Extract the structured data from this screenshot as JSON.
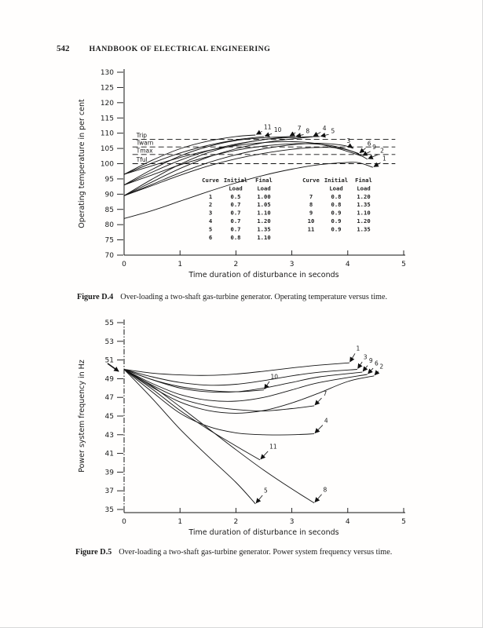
{
  "page": {
    "number": "542",
    "header_title": "HANDBOOK OF ELECTRICAL ENGINEERING"
  },
  "chart_data": [
    {
      "id": "fig4",
      "type": "line",
      "xlabel": "Time duration of disturbance in seconds",
      "ylabel": "Operating temperature in per cent",
      "xlim": [
        0,
        5
      ],
      "ylim": [
        70,
        130
      ],
      "xticks": [
        0,
        1,
        2,
        3,
        4,
        5
      ],
      "yticks": [
        70,
        75,
        80,
        85,
        90,
        95,
        100,
        105,
        110,
        115,
        120,
        125,
        130
      ],
      "thresholds": [
        {
          "label": "Trip",
          "value": 108
        },
        {
          "label": "Twarn",
          "value": 105.5
        },
        {
          "label": "Tmax",
          "value": 103
        },
        {
          "label": "Tful",
          "value": 100
        }
      ],
      "series": [
        {
          "name": "1",
          "points": [
            [
              0,
              82
            ],
            [
              0.5,
              84.6
            ],
            [
              1,
              87.7
            ],
            [
              1.5,
              90.8
            ],
            [
              2,
              93.7
            ],
            [
              2.5,
              96.2
            ],
            [
              3,
              98.2
            ],
            [
              3.5,
              99.7
            ],
            [
              4,
              100.4
            ],
            [
              4.2,
              100.3
            ],
            [
              4.45,
              98.8
            ]
          ],
          "label_at": [
            4.62,
            101.0
          ]
        },
        {
          "name": "2",
          "points": [
            [
              0,
              89.5
            ],
            [
              0.5,
              92.8
            ],
            [
              1,
              96.2
            ],
            [
              1.5,
              99.2
            ],
            [
              2,
              101.6
            ],
            [
              2.5,
              103.4
            ],
            [
              3,
              104.7
            ],
            [
              3.4,
              105.3
            ],
            [
              3.8,
              105.2
            ],
            [
              4.1,
              103.9
            ],
            [
              4.35,
              101.5
            ]
          ],
          "label_at": [
            4.58,
            103.6
          ]
        },
        {
          "name": "3",
          "points": [
            [
              0,
              89.5
            ],
            [
              0.5,
              93.2
            ],
            [
              1,
              97
            ],
            [
              1.5,
              100.3
            ],
            [
              2,
              102.9
            ],
            [
              2.5,
              104.9
            ],
            [
              3,
              106.2
            ],
            [
              3.4,
              106.7
            ],
            [
              3.7,
              106.5
            ],
            [
              3.95,
              105.9
            ],
            [
              4.1,
              105
            ]
          ],
          "label_at": [
            3.98,
            106.8
          ]
        },
        {
          "name": "4",
          "points": [
            [
              0,
              89.5
            ],
            [
              0.5,
              94
            ],
            [
              1,
              98.4
            ],
            [
              1.5,
              102.1
            ],
            [
              2,
              104.9
            ],
            [
              2.5,
              106.9
            ],
            [
              3,
              108.1
            ],
            [
              3.37,
              108.8
            ]
          ],
          "label_at": [
            3.55,
            111.0
          ]
        },
        {
          "name": "5",
          "points": [
            [
              0,
              89.5
            ],
            [
              0.5,
              94.9
            ],
            [
              1,
              99.8
            ],
            [
              1.5,
              103.6
            ],
            [
              2,
              106.2
            ],
            [
              2.5,
              107.9
            ],
            [
              3,
              108.6
            ],
            [
              3.5,
              108.9
            ]
          ],
          "label_at": [
            3.7,
            110.1
          ]
        },
        {
          "name": "6",
          "points": [
            [
              0,
              93
            ],
            [
              0.5,
              96.3
            ],
            [
              1,
              99.6
            ],
            [
              1.5,
              102.3
            ],
            [
              2,
              104.4
            ],
            [
              2.5,
              105.8
            ],
            [
              3,
              106.5
            ],
            [
              3.4,
              106.5
            ],
            [
              3.8,
              105.6
            ],
            [
              4.2,
              103.3
            ]
          ],
          "label_at": [
            4.35,
            105.9
          ]
        },
        {
          "name": "7",
          "points": [
            [
              0,
              93
            ],
            [
              0.5,
              97.2
            ],
            [
              1,
              101.1
            ],
            [
              1.5,
              104.2
            ],
            [
              2,
              106.4
            ],
            [
              2.5,
              107.9
            ],
            [
              2.95,
              108.9
            ]
          ],
          "label_at": [
            3.1,
            110.9
          ]
        },
        {
          "name": "8",
          "points": [
            [
              0,
              93
            ],
            [
              0.5,
              98.1
            ],
            [
              1,
              102.5
            ],
            [
              1.5,
              105.6
            ],
            [
              2,
              107.6
            ],
            [
              2.6,
              108.6
            ],
            [
              3.06,
              108.9
            ]
          ],
          "label_at": [
            3.25,
            110.0
          ]
        },
        {
          "name": "9",
          "points": [
            [
              0,
              96.5
            ],
            [
              0.5,
              99.3
            ],
            [
              1,
              102
            ],
            [
              1.5,
              104.3
            ],
            [
              2,
              105.9
            ],
            [
              2.5,
              106.9
            ],
            [
              3,
              107.2
            ],
            [
              3.4,
              106.7
            ],
            [
              3.8,
              105.1
            ],
            [
              4.25,
              102.5
            ]
          ],
          "label_at": [
            4.44,
            104.7
          ]
        },
        {
          "name": "10",
          "points": [
            [
              0,
              96.5
            ],
            [
              0.5,
              100.2
            ],
            [
              1,
              103.5
            ],
            [
              1.5,
              106
            ],
            [
              2,
              107.8
            ],
            [
              2.5,
              108.9
            ]
          ],
          "label_at": [
            2.68,
            110.4
          ]
        },
        {
          "name": "11",
          "points": [
            [
              0,
              96.5
            ],
            [
              0.5,
              101.1
            ],
            [
              1,
              104.9
            ],
            [
              1.5,
              107.4
            ],
            [
              2,
              108.9
            ],
            [
              2.35,
              109.4
            ]
          ],
          "label_at": [
            2.5,
            111.3
          ]
        }
      ],
      "legend_table": {
        "header_line1": [
          "Curve",
          "Initial",
          "Final"
        ],
        "header_line2": [
          "",
          "Load",
          "Load"
        ],
        "groups": [
          {
            "rows": [
              [
                "1",
                "0.5",
                "1.00"
              ],
              [
                "2",
                "0.7",
                "1.05"
              ],
              [
                "3",
                "0.7",
                "1.10"
              ],
              [
                "4",
                "0.7",
                "1.20"
              ],
              [
                "5",
                "0.7",
                "1.35"
              ],
              [
                "6",
                "0.8",
                "1.10"
              ]
            ]
          },
          {
            "rows": [
              [
                "7",
                "0.8",
                "1.20"
              ],
              [
                "8",
                "0.8",
                "1.35"
              ],
              [
                "9",
                "0.9",
                "1.10"
              ],
              [
                "10",
                "0.9",
                "1.20"
              ],
              [
                "11",
                "0.9",
                "1.35"
              ]
            ]
          }
        ]
      },
      "caption_tag": "Figure D.4",
      "caption_text": "Over-loading a two-shaft gas-turbine generator. Operating temperature versus time."
    },
    {
      "id": "fig5",
      "type": "line",
      "xlabel": "Time duration of disturbance in seconds",
      "ylabel": "Power system frequency in Hz",
      "xlim": [
        0,
        5
      ],
      "ylim": [
        35,
        55
      ],
      "xticks": [
        0,
        1,
        2,
        3,
        4,
        5
      ],
      "yticks": [
        35,
        37,
        39,
        41,
        43,
        45,
        47,
        49,
        51,
        53,
        55
      ],
      "series": [
        {
          "name": "1",
          "points": [
            [
              0,
              50
            ],
            [
              0.5,
              49.6
            ],
            [
              1,
              49.4
            ],
            [
              1.5,
              49.35
            ],
            [
              2,
              49.5
            ],
            [
              2.5,
              49.8
            ],
            [
              3,
              50.15
            ],
            [
              3.5,
              50.45
            ],
            [
              4.03,
              50.7
            ]
          ],
          "label_at": [
            4.15,
            52.0
          ]
        },
        {
          "name": "2",
          "points": [
            [
              0,
              50
            ],
            [
              0.5,
              48.1
            ],
            [
              1,
              46.5
            ],
            [
              1.5,
              45.6
            ],
            [
              2,
              45.3
            ],
            [
              2.5,
              45.6
            ],
            [
              3,
              46.4
            ],
            [
              3.5,
              47.5
            ],
            [
              4,
              48.7
            ],
            [
              4.47,
              49.3
            ]
          ],
          "label_at": [
            4.57,
            50.1
          ]
        },
        {
          "name": "3",
          "points": [
            [
              0,
              50
            ],
            [
              0.5,
              49.2
            ],
            [
              1,
              48.6
            ],
            [
              1.5,
              48.3
            ],
            [
              2,
              48.4
            ],
            [
              2.5,
              48.8
            ],
            [
              3,
              49.3
            ],
            [
              3.5,
              49.7
            ],
            [
              4.17,
              50.0
            ]
          ],
          "label_at": [
            4.28,
            51.1
          ]
        },
        {
          "name": "4",
          "points": [
            [
              0,
              50
            ],
            [
              0.5,
              47.6
            ],
            [
              1,
              45.3
            ],
            [
              1.5,
              43.9
            ],
            [
              2,
              43.2
            ],
            [
              2.5,
              43.0
            ],
            [
              3,
              43.0
            ],
            [
              3.4,
              43.1
            ]
          ],
          "label_at": [
            3.58,
            44.3
          ]
        },
        {
          "name": "5",
          "points": [
            [
              0,
              50
            ],
            [
              0.5,
              46.9
            ],
            [
              1,
              43.6
            ],
            [
              1.5,
              40.7
            ],
            [
              2,
              37.9
            ],
            [
              2.35,
              35.6
            ]
          ],
          "label_at": [
            2.5,
            36.8
          ]
        },
        {
          "name": "6",
          "points": [
            [
              0,
              50
            ],
            [
              0.5,
              48.5
            ],
            [
              1,
              47.3
            ],
            [
              1.5,
              46.7
            ],
            [
              2,
              46.6
            ],
            [
              2.5,
              47.0
            ],
            [
              3,
              47.8
            ],
            [
              3.5,
              48.6
            ],
            [
              4.35,
              49.45
            ]
          ],
          "label_at": [
            4.48,
            50.4
          ]
        },
        {
          "name": "7",
          "points": [
            [
              0,
              50
            ],
            [
              0.5,
              48.3
            ],
            [
              1,
              46.9
            ],
            [
              1.5,
              46.1
            ],
            [
              2,
              45.7
            ],
            [
              2.5,
              45.55
            ],
            [
              3,
              45.8
            ],
            [
              3.4,
              46.1
            ]
          ],
          "label_at": [
            3.56,
            47.2
          ]
        },
        {
          "name": "8",
          "points": [
            [
              0,
              50
            ],
            [
              0.5,
              48.2
            ],
            [
              1,
              46
            ],
            [
              1.5,
              43.7
            ],
            [
              2,
              41.4
            ],
            [
              2.5,
              39.2
            ],
            [
              3,
              37.2
            ],
            [
              3.4,
              35.7
            ]
          ],
          "label_at": [
            3.56,
            36.9
          ]
        },
        {
          "name": "9",
          "points": [
            [
              0,
              50
            ],
            [
              0.5,
              48.9
            ],
            [
              1,
              48
            ],
            [
              1.5,
              47.6
            ],
            [
              2,
              47.6
            ],
            [
              2.5,
              48
            ],
            [
              3,
              48.6
            ],
            [
              3.5,
              49.2
            ],
            [
              4.26,
              49.7
            ]
          ],
          "label_at": [
            4.38,
            50.7
          ]
        },
        {
          "name": "10",
          "points": [
            [
              0,
              50
            ],
            [
              0.5,
              48.9
            ],
            [
              1,
              48.15
            ],
            [
              1.5,
              47.75
            ],
            [
              2,
              47.6
            ],
            [
              2.5,
              47.8
            ]
          ],
          "label_at": [
            2.62,
            49.0
          ]
        },
        {
          "name": "11",
          "points": [
            [
              0,
              50
            ],
            [
              0.5,
              47.9
            ],
            [
              1,
              45.6
            ],
            [
              1.5,
              43.6
            ],
            [
              2,
              41.8
            ],
            [
              2.43,
              40.3
            ]
          ],
          "label_at": [
            2.6,
            41.5
          ]
        }
      ],
      "caption_tag": "Figure D.5",
      "caption_text": "Over-loading a two-shaft gas-turbine generator. Power system frequency versus time."
    }
  ]
}
